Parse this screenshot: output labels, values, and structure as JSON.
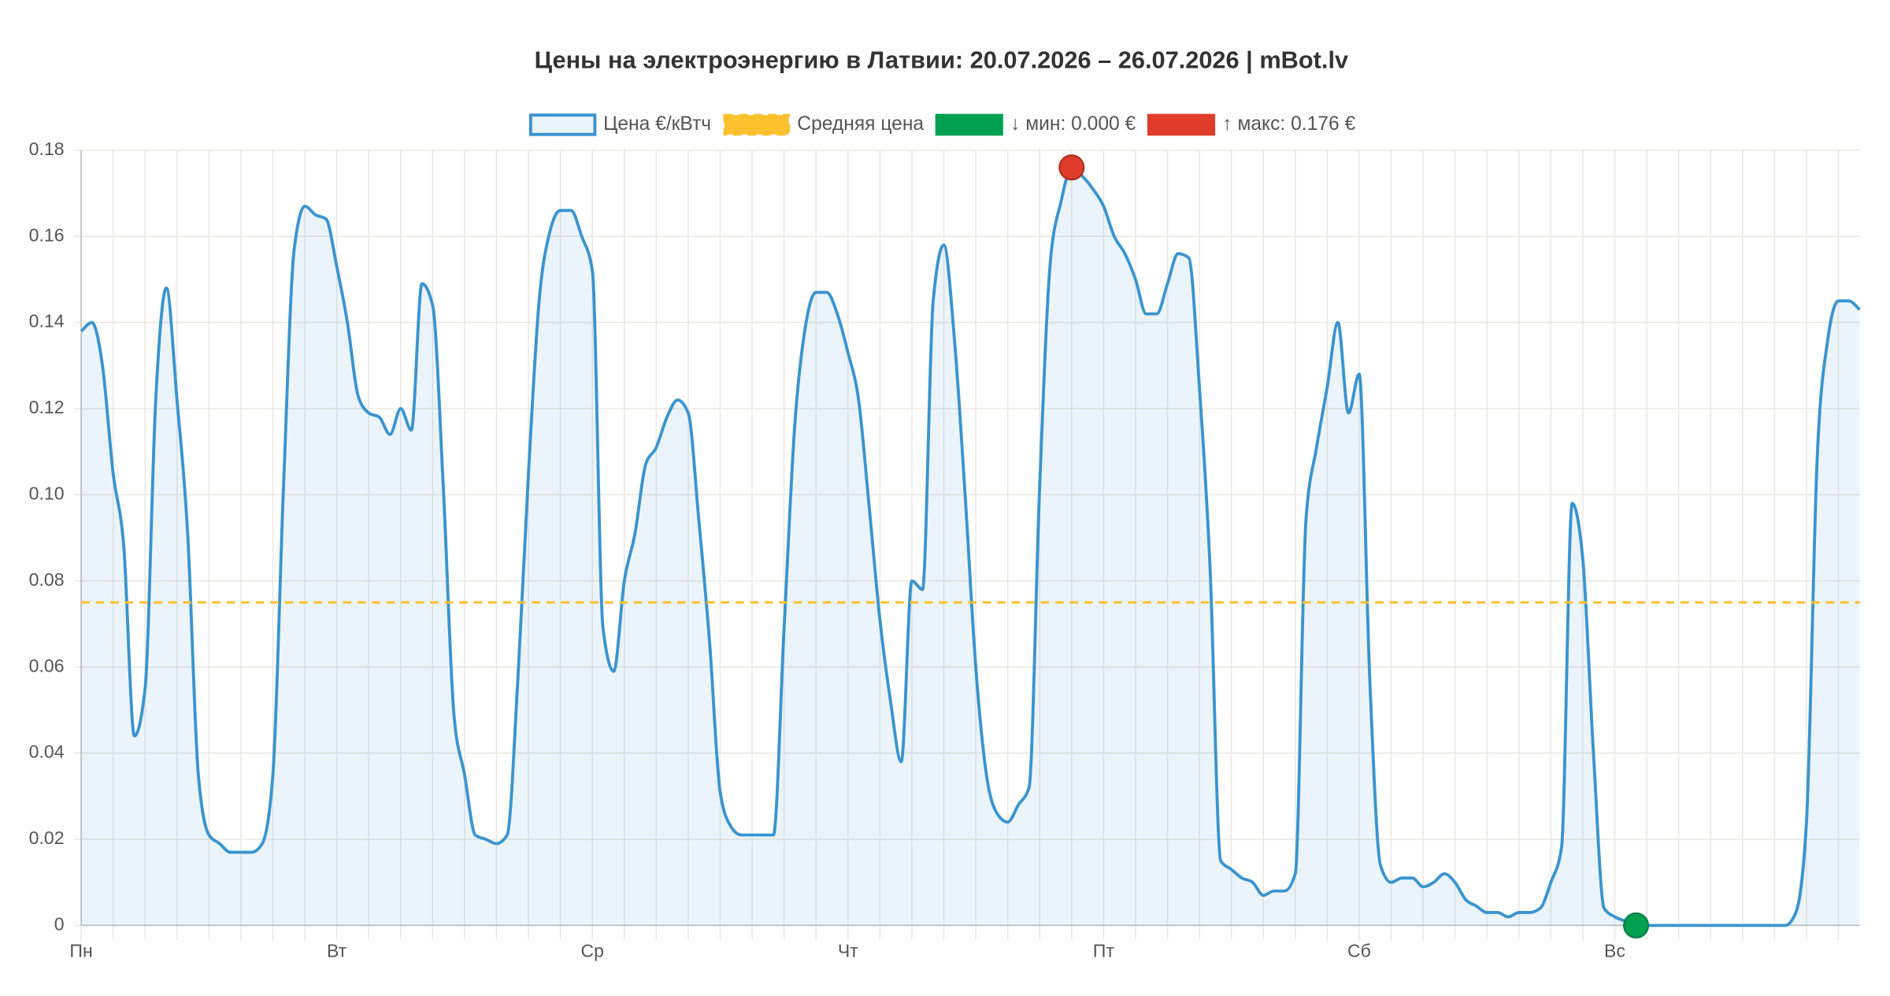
{
  "chart_data": {
    "type": "line",
    "title": "Цены на электроэнергию в Латвии: 20.07.2026 – 26.07.2026 | mBot.lv",
    "categories": [
      "Пн",
      null,
      null,
      null,
      null,
      null,
      null,
      null,
      null,
      null,
      null,
      null,
      null,
      null,
      null,
      null,
      null,
      null,
      null,
      null,
      null,
      null,
      null,
      null,
      "Вт",
      null,
      null,
      null,
      null,
      null,
      null,
      null,
      null,
      null,
      null,
      null,
      null,
      null,
      null,
      null,
      null,
      null,
      null,
      null,
      null,
      null,
      null,
      null,
      "Ср",
      null,
      null,
      null,
      null,
      null,
      null,
      null,
      null,
      null,
      null,
      null,
      null,
      null,
      null,
      null,
      null,
      null,
      null,
      null,
      null,
      null,
      null,
      null,
      "Чт",
      null,
      null,
      null,
      null,
      null,
      null,
      null,
      null,
      null,
      null,
      null,
      null,
      null,
      null,
      null,
      null,
      null,
      null,
      null,
      null,
      null,
      null,
      null,
      "Пт",
      null,
      null,
      null,
      null,
      null,
      null,
      null,
      null,
      null,
      null,
      null,
      null,
      null,
      null,
      null,
      null,
      null,
      null,
      null,
      null,
      null,
      null,
      null,
      "Сб",
      null,
      null,
      null,
      null,
      null,
      null,
      null,
      null,
      null,
      null,
      null,
      null,
      null,
      null,
      null,
      null,
      null,
      null,
      null,
      null,
      null,
      null,
      null,
      "Вс",
      null,
      null,
      null,
      null,
      null,
      null,
      null,
      null,
      null,
      null,
      null,
      null,
      null,
      null,
      null,
      null,
      null,
      null,
      null,
      null,
      null,
      null,
      null
    ],
    "series": [
      {
        "name": "Цена €/кВтч",
        "color": "#3a94d0",
        "values": [
          0.138,
          0.14,
          0.13,
          0.105,
          0.088,
          0.044,
          0.055,
          0.122,
          0.148,
          0.122,
          0.091,
          0.035,
          0.021,
          0.019,
          0.017,
          0.017,
          0.017,
          0.019,
          0.035,
          0.102,
          0.157,
          0.167,
          0.165,
          0.164,
          0.153,
          0.14,
          0.123,
          0.119,
          0.118,
          0.114,
          0.12,
          0.115,
          0.149,
          0.144,
          0.102,
          0.049,
          0.035,
          0.021,
          0.02,
          0.019,
          0.021,
          0.057,
          0.105,
          0.145,
          0.161,
          0.166,
          0.166,
          0.16,
          0.152,
          0.069,
          0.059,
          0.08,
          0.091,
          0.107,
          0.111,
          0.118,
          0.122,
          0.119,
          0.094,
          0.066,
          0.031,
          0.023,
          0.021,
          0.021,
          0.021,
          0.021,
          0.069,
          0.116,
          0.139,
          0.147,
          0.147,
          0.142,
          0.133,
          0.122,
          0.097,
          0.071,
          0.052,
          0.038,
          0.08,
          0.078,
          0.145,
          0.158,
          0.136,
          0.1,
          0.06,
          0.035,
          0.026,
          0.024,
          0.028,
          0.032,
          0.102,
          0.154,
          0.168,
          0.176,
          0.174,
          0.171,
          0.167,
          0.16,
          0.156,
          0.15,
          0.142,
          0.142,
          0.149,
          0.156,
          0.155,
          0.125,
          0.083,
          0.015,
          0.013,
          0.011,
          0.01,
          0.007,
          0.008,
          0.008,
          0.012,
          0.094,
          0.111,
          0.125,
          0.14,
          0.119,
          0.128,
          0.057,
          0.014,
          0.01,
          0.011,
          0.011,
          0.009,
          0.01,
          0.012,
          0.01,
          0.006,
          0.0045,
          0.003,
          0.003,
          0.002,
          0.003,
          0.003,
          0.004,
          0.01,
          0.018,
          0.098,
          0.085,
          0.04,
          0.004,
          0.002,
          0.001,
          0,
          0,
          0,
          0,
          0,
          0,
          0,
          0,
          0,
          0,
          0,
          0,
          0,
          0,
          0,
          0.003,
          0.024,
          0.108,
          0.136,
          0.145,
          0.145,
          0.143
        ]
      }
    ],
    "average": {
      "name": "Средняя цена",
      "color": "#fbc02d",
      "value": 0.075
    },
    "min_marker": {
      "name": "↓ мин: 0.000 €",
      "color": "#00a050"
    },
    "max_marker": {
      "name": "↑ макс: 0.176 €",
      "color": "#e03c2c"
    },
    "ylim": [
      0,
      0.18
    ],
    "yticks": [
      0,
      0.02,
      0.04,
      0.06,
      0.08,
      {
        "value": 0.1,
        "label": "0.10"
      },
      0.12,
      0.14,
      0.16,
      0.18
    ],
    "grid": true
  }
}
